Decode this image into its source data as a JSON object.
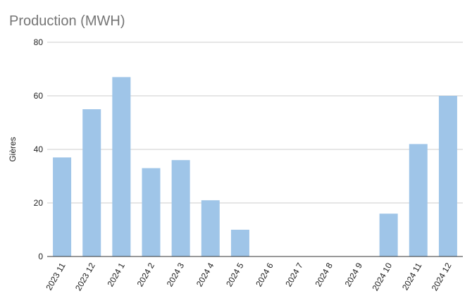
{
  "chart_data": {
    "type": "bar",
    "title": "Production (MWH)",
    "xlabel": "",
    "ylabel": "Gières",
    "ylim": [
      0,
      80
    ],
    "yticks": [
      0,
      20,
      40,
      60,
      80
    ],
    "grid": true,
    "legend": "none",
    "categories": [
      "2023 11",
      "2023 12",
      "2024 1",
      "2024 2",
      "2024 3",
      "2024 4",
      "2024 5",
      "2024 6",
      "2024 7",
      "2024 8",
      "2024 9",
      "2024 10",
      "2024 11",
      "2024 12"
    ],
    "series": [
      {
        "values": [
          37,
          55,
          67,
          33,
          36,
          21,
          10,
          0,
          0,
          0,
          0,
          16,
          42,
          60
        ],
        "color": "#9fc5e8"
      }
    ],
    "colors": {
      "grid": "#cccccc",
      "axis": "#333333"
    }
  }
}
